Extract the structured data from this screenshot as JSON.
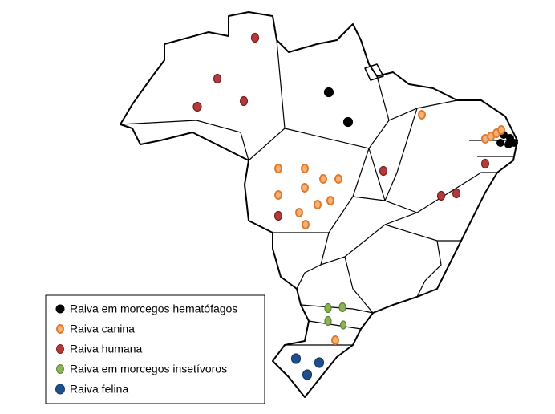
{
  "legend": {
    "items": [
      {
        "label": "Raiva em morcegos hematófagos"
      },
      {
        "label": "Raiva canina"
      },
      {
        "label": "Raiva humana"
      },
      {
        "label": "Raiva em morcegos insetívoros"
      },
      {
        "label": "Raiva felina"
      }
    ]
  }
}
